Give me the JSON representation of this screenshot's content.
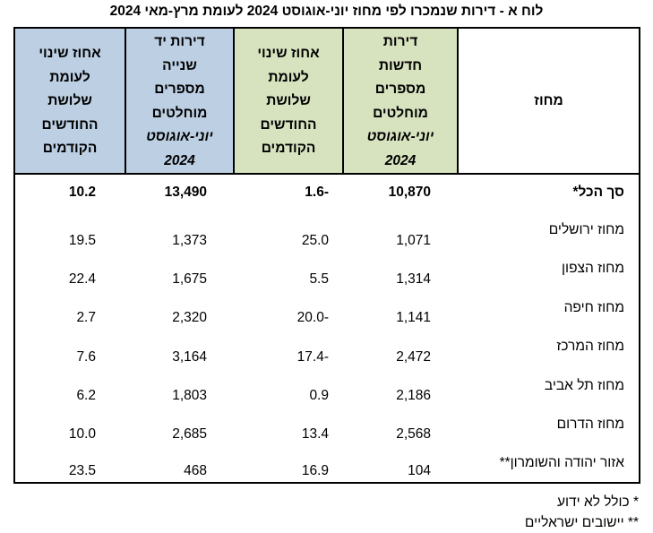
{
  "title": "לוח א - דירות שנמכרו לפי מחוז יוני-אוגוסט 2024 לעומת מרץ-מאי 2024",
  "headers": {
    "district": "מחוז",
    "new_line1": "דירות",
    "new_line2": "חדשות",
    "new_line3": "מספרים",
    "new_line4": "מוחלטים",
    "new_period": "יוני-אוגוסט",
    "new_year": "2024",
    "new_change_line1": "אחוז שינוי",
    "new_change_line2": "לעומת",
    "new_change_line3": "שלושת",
    "new_change_line4": "החודשים",
    "new_change_line5": "הקודמים",
    "used_line1": "דירות יד",
    "used_line2": "שנייה",
    "used_line3": "מספרים",
    "used_line4": "מוחלטים",
    "used_period": "יוני-אוגוסט",
    "used_year": "2024",
    "used_change_line1": "אחוז שינוי",
    "used_change_line2": "לעומת",
    "used_change_line3": "שלושת",
    "used_change_line4": "החודשים",
    "used_change_line5": "הקודמים"
  },
  "rows": [
    {
      "district": "סך הכל*",
      "new": "10,870",
      "new_change": "-1.6",
      "used": "13,490",
      "used_change": "10.2"
    },
    {
      "district": "מחוז ירושלים",
      "new": "1,071",
      "new_change": "25.0",
      "used": "1,373",
      "used_change": "19.5"
    },
    {
      "district": "מחוז הצפון",
      "new": "1,314",
      "new_change": "5.5",
      "used": "1,675",
      "used_change": "22.4"
    },
    {
      "district": "מחוז חיפה",
      "new": "1,141",
      "new_change": "-20.0",
      "used": "2,320",
      "used_change": "2.7"
    },
    {
      "district": "מחוז המרכז",
      "new": "2,472",
      "new_change": "-17.4",
      "used": "3,164",
      "used_change": "7.6"
    },
    {
      "district": "מחוז תל אביב",
      "new": "2,186",
      "new_change": "0.9",
      "used": "1,803",
      "used_change": "6.2"
    },
    {
      "district": "מחוז הדרום",
      "new": "2,568",
      "new_change": "13.4",
      "used": "2,685",
      "used_change": "10.0"
    },
    {
      "district": "אזור יהודה והשומרון**",
      "new": "104",
      "new_change": "16.9",
      "used": "468",
      "used_change": "23.5"
    }
  ],
  "footnotes": {
    "note1": "* כולל לא ידוע",
    "note2": "** יישובים ישראליים"
  },
  "colors": {
    "used_header_bg": "#bccfe3",
    "new_header_bg": "#d7e3bf"
  }
}
